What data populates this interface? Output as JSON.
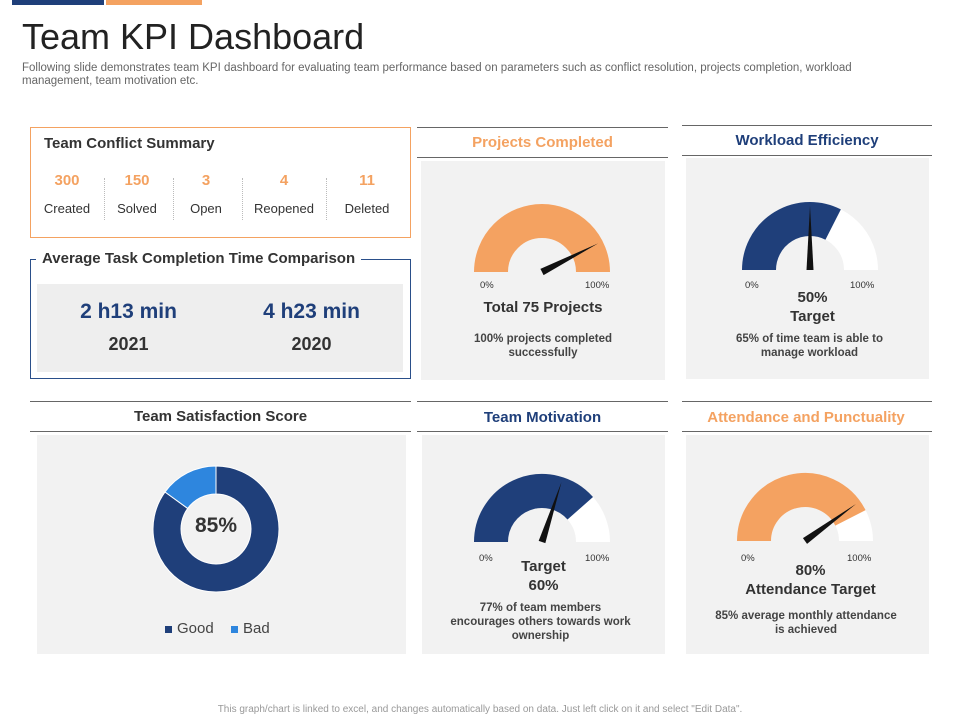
{
  "page": {
    "title": "Team KPI Dashboard",
    "subtitle": "Following slide demonstrates team KPI dashboard for evaluating team performance based on parameters such as conflict resolution, projects completion, workload management, team motivation etc.",
    "footer": "This graph/chart is linked to excel, and changes automatically based on data. Just left click on it and select \"Edit Data\"."
  },
  "colors": {
    "navy": "#1f3f7a",
    "orange": "#f4a261",
    "blue": "#2e86de",
    "panel": "#f2f2f2"
  },
  "conflict": {
    "title": "Team Conflict Summary",
    "stats": [
      {
        "value": "300",
        "label": "Created"
      },
      {
        "value": "150",
        "label": "Solved"
      },
      {
        "value": "3",
        "label": "Open"
      },
      {
        "value": "4",
        "label": "Reopened"
      },
      {
        "value": "11",
        "label": "Deleted"
      }
    ]
  },
  "avg_time": {
    "title": "Average Task Completion Time Comparison",
    "items": [
      {
        "value": "2 h13 min",
        "year": "2021"
      },
      {
        "value": "4 h23 min",
        "year": "2020"
      }
    ]
  },
  "projects": {
    "title": "Projects Completed",
    "min_label": "0%",
    "max_label": "100%",
    "headline": "Total 75 Projects",
    "desc_line1": "100% projects completed",
    "desc_line2": "successfully"
  },
  "workload": {
    "title": "Workload Efficiency",
    "min_label": "0%",
    "max_label": "100%",
    "target_value": "50%",
    "target_label": "Target",
    "desc_line1": "65% of time team is able to",
    "desc_line2": "manage workload"
  },
  "satisfaction": {
    "title": "Team Satisfaction Score",
    "center_label": "85%",
    "legend_good": "Good",
    "legend_bad": "Bad"
  },
  "motivation": {
    "title": "Team Motivation",
    "min_label": "0%",
    "max_label": "100%",
    "target_label": "Target",
    "target_value": "60%",
    "desc_line1": "77% of team members",
    "desc_line2": "encourages others towards work",
    "desc_line3": "ownership"
  },
  "attendance": {
    "title": "Attendance and Punctuality",
    "min_label": "0%",
    "max_label": "100%",
    "target_value": "80%",
    "target_label": "Attendance Target",
    "desc_line1": "85% average monthly attendance",
    "desc_line2": "is achieved"
  },
  "chart_data": [
    {
      "type": "gauge",
      "title": "Projects Completed",
      "value": 100,
      "needle": 85,
      "range": [
        0,
        100
      ]
    },
    {
      "type": "gauge",
      "title": "Workload Efficiency",
      "value": 65,
      "needle": 50,
      "range": [
        0,
        100
      ]
    },
    {
      "type": "pie",
      "title": "Team Satisfaction Score",
      "categories": [
        "Good",
        "Bad"
      ],
      "values": [
        85,
        15
      ]
    },
    {
      "type": "gauge",
      "title": "Team Motivation",
      "value": 77,
      "needle": 60,
      "range": [
        0,
        100
      ]
    },
    {
      "type": "gauge",
      "title": "Attendance and Punctuality",
      "value": 85,
      "needle": 80,
      "range": [
        0,
        100
      ]
    }
  ]
}
